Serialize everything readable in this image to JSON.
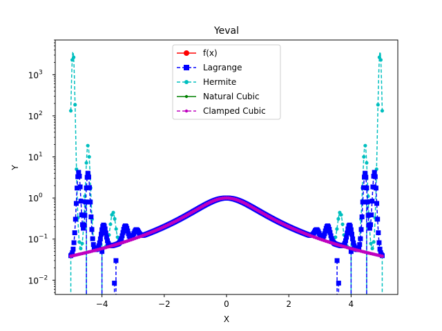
{
  "chart_data": {
    "type": "line",
    "title": "Yeval",
    "xlabel": "X",
    "ylabel": "Y",
    "xlim": [
      -5.5,
      5.5
    ],
    "ylim": [
      0.0045,
      7000
    ],
    "yscale": "log",
    "grid": false,
    "legend_position": "top-center",
    "x_ticks": [
      {
        "value": -4,
        "label": "−4"
      },
      {
        "value": -2,
        "label": "−2"
      },
      {
        "value": 0,
        "label": "0"
      },
      {
        "value": 2,
        "label": "2"
      },
      {
        "value": 4,
        "label": "4"
      }
    ],
    "y_ticks": [
      {
        "value": 0.01,
        "label": "10",
        "exp": "−2"
      },
      {
        "value": 0.1,
        "label": "10",
        "exp": "−1"
      },
      {
        "value": 1,
        "label": "10",
        "exp": "0"
      },
      {
        "value": 10,
        "label": "10",
        "exp": "1"
      },
      {
        "value": 100,
        "label": "10",
        "exp": "2"
      },
      {
        "value": 1000,
        "label": "10",
        "exp": "3"
      }
    ],
    "series": [
      {
        "name": "f(x)",
        "color": "#ff0000",
        "style": "solid",
        "marker": "circle"
      },
      {
        "name": "Lagrange",
        "color": "#0000ff",
        "style": "dashed",
        "marker": "square"
      },
      {
        "name": "Hermite",
        "color": "#00bfbf",
        "style": "dashed",
        "marker": "hexagon"
      },
      {
        "name": "Natural Cubic",
        "color": "#008000",
        "style": "solid",
        "marker": "dot"
      },
      {
        "name": "Clamped Cubic",
        "color": "#bf00bf",
        "style": "dashed",
        "marker": "dot"
      }
    ],
    "function_curve": "1/(1+x^2)",
    "lagrange_bumps": [
      {
        "x": 4.75,
        "y": 4.2
      },
      {
        "x": 4.45,
        "y": 4.0
      },
      {
        "x": 3.95,
        "y": 0.22
      },
      {
        "x": 3.25,
        "y": 0.21
      },
      {
        "x": 2.9,
        "y": 0.17
      }
    ],
    "lagrange_dips": [
      {
        "x": 4.5,
        "y": 0.8
      },
      {
        "x": 4.0,
        "y": 0.05
      },
      {
        "x": 3.6,
        "y": 0.0085
      },
      {
        "x": 3.55,
        "y": 0.03
      }
    ],
    "hermite_bumps": [
      {
        "x": 4.93,
        "y": 3700
      },
      {
        "x": 4.45,
        "y": 19
      },
      {
        "x": 3.65,
        "y": 0.45
      }
    ],
    "hermite_dips": [
      {
        "x": 5.0,
        "y": 0.04
      },
      {
        "x": 4.5,
        "y": 0.7
      },
      {
        "x": 4.0,
        "y": 0.08
      }
    ]
  }
}
